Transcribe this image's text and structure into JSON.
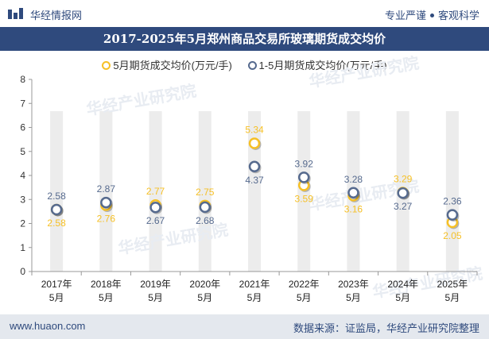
{
  "header": {
    "brand": "华经情报网",
    "slogan_left": "专业严谨",
    "slogan_right": "客观科学",
    "logo_icon": "bar-chart-logo-icon"
  },
  "title": "2017-2025年5月郑州商品交易所玻璃期货成交均价",
  "watermark": "华经产业研究院",
  "footer": {
    "website": "www.huaon.com",
    "source": "数据来源：证监局，华经产业研究院整理"
  },
  "colors": {
    "primary": "#2f4a7d",
    "may_series": "#f6c026",
    "ytd_series": "#566a8e",
    "column_bg": "#ececec"
  },
  "chart_data": {
    "type": "scatter",
    "categories": [
      "2017年\n5月",
      "2018年\n5月",
      "2019年\n5月",
      "2020年\n5月",
      "2021年\n5月",
      "2022年\n5月",
      "2023年\n5月",
      "2024年\n5月",
      "2025年\n5月"
    ],
    "series": [
      {
        "name": "5月期货成交均价(万元/手)",
        "values": [
          2.58,
          2.76,
          2.77,
          2.75,
          5.34,
          3.59,
          3.16,
          3.29,
          2.05
        ],
        "color": "#f6c026"
      },
      {
        "name": "1-5月期货成交均价(万元/手)",
        "values": [
          2.58,
          2.87,
          2.67,
          2.68,
          4.37,
          3.92,
          3.28,
          3.27,
          2.36
        ],
        "color": "#566a8e"
      }
    ],
    "ylim": [
      0,
      8
    ],
    "yticks": [
      "0",
      "1",
      "2",
      "3",
      "4",
      "5",
      "6",
      "7",
      "8"
    ],
    "xlabel": "",
    "ylabel": "",
    "grid": false,
    "legend_position": "top"
  }
}
